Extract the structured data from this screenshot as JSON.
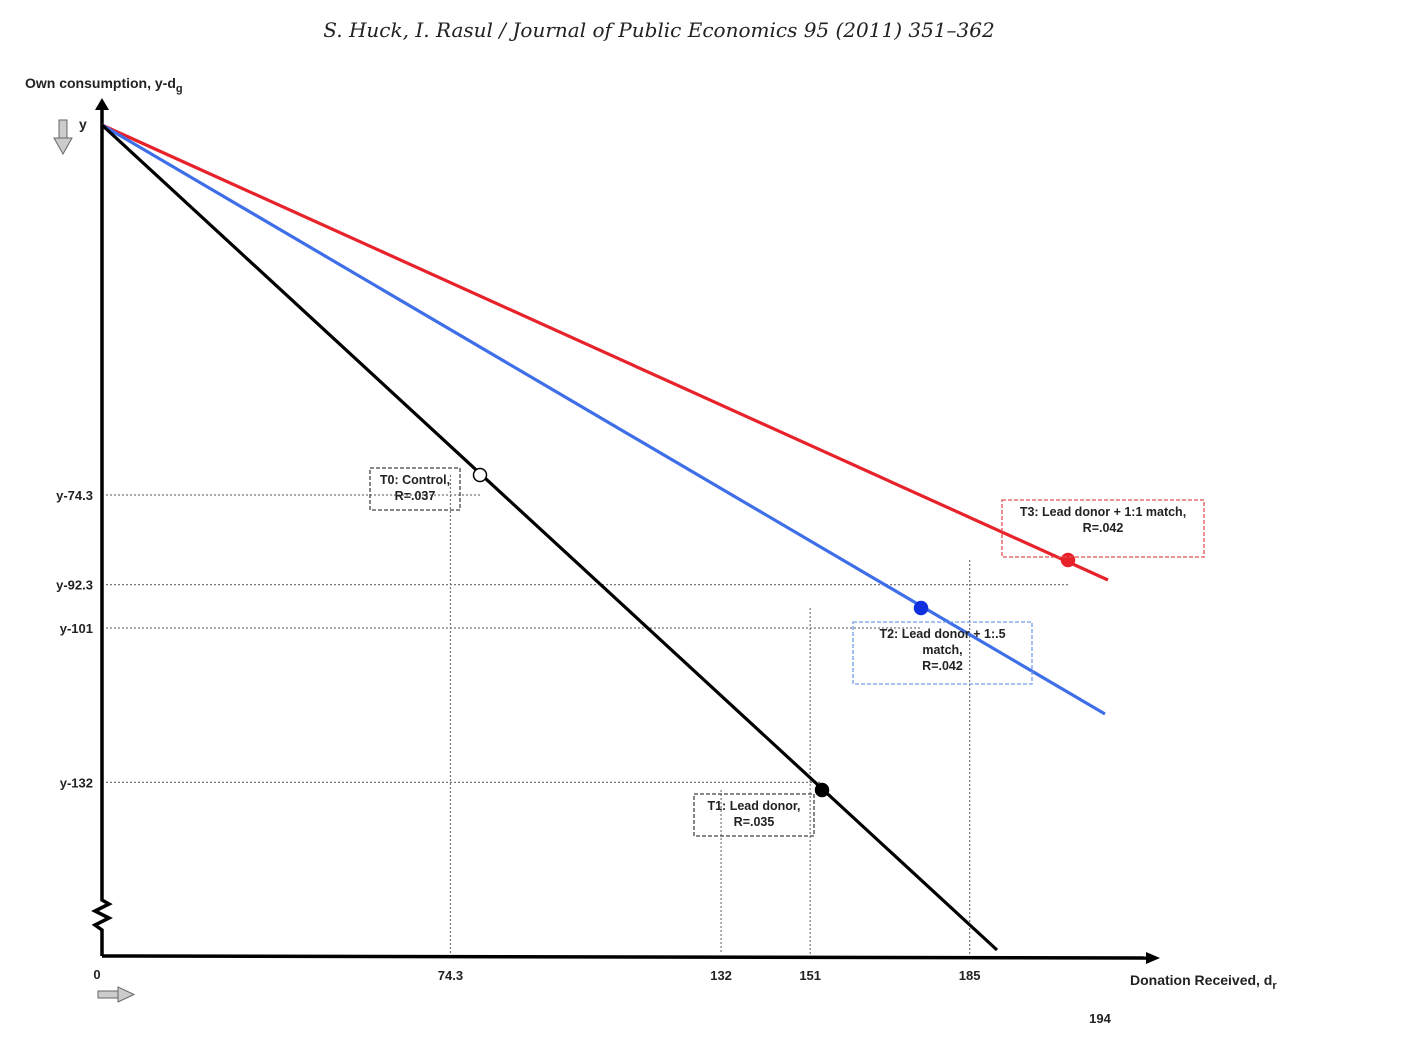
{
  "header": {
    "citation": "S. Huck, I. Rasul / Journal of Public Economics 95 (2011) 351–362"
  },
  "chart_data": {
    "type": "line",
    "ylabel": "Own consumption, y-dg",
    "ylabel_sub": "g",
    "ylabel_main": "Own consumption, y-d",
    "y_top_label": "y",
    "xlabel_main": "Donation Received, d",
    "xlabel_sub": "r",
    "x_origin_label": "0",
    "x_ticks": [
      {
        "value": 74.3,
        "label": "74.3"
      },
      {
        "value": 132,
        "label": "132"
      },
      {
        "value": 151,
        "label": "151"
      },
      {
        "value": 185,
        "label": "185"
      }
    ],
    "y_ticks": [
      {
        "value": 74.3,
        "label": "y-74.3"
      },
      {
        "value": 92.3,
        "label": "y-92.3"
      },
      {
        "value": 101,
        "label": "y-101"
      },
      {
        "value": 132,
        "label": "y-132"
      }
    ],
    "series": [
      {
        "id": "T0",
        "color": "#000000",
        "marker": "hollow",
        "point": {
          "x": 74.3,
          "y": 74.3
        },
        "label_lines": [
          "T0: Control,",
          "R=.037"
        ],
        "box_color": "#444444"
      },
      {
        "id": "T1",
        "color": "#000000",
        "marker": "filled",
        "point": {
          "x": 132,
          "y": 132
        },
        "label_lines": [
          "T1: Lead donor,",
          "R=.035"
        ],
        "box_color": "#444444"
      },
      {
        "id": "T2",
        "color": "#3f6fe8",
        "marker": "filled",
        "marker_color": "#1030e0",
        "point": {
          "x": 151,
          "y": 101
        },
        "label_lines": [
          "T2: Lead donor + 1:.5",
          "match,",
          "R=.042"
        ],
        "box_color": "#6f9de8"
      },
      {
        "id": "T3",
        "color": "#e8222a",
        "marker": "filled",
        "point": {
          "x": 185,
          "y": 92.3
        },
        "label_lines": [
          "T3: Lead donor + 1:1 match,",
          "R=.042"
        ],
        "box_color": "#e05050"
      }
    ]
  },
  "page_number": "194"
}
